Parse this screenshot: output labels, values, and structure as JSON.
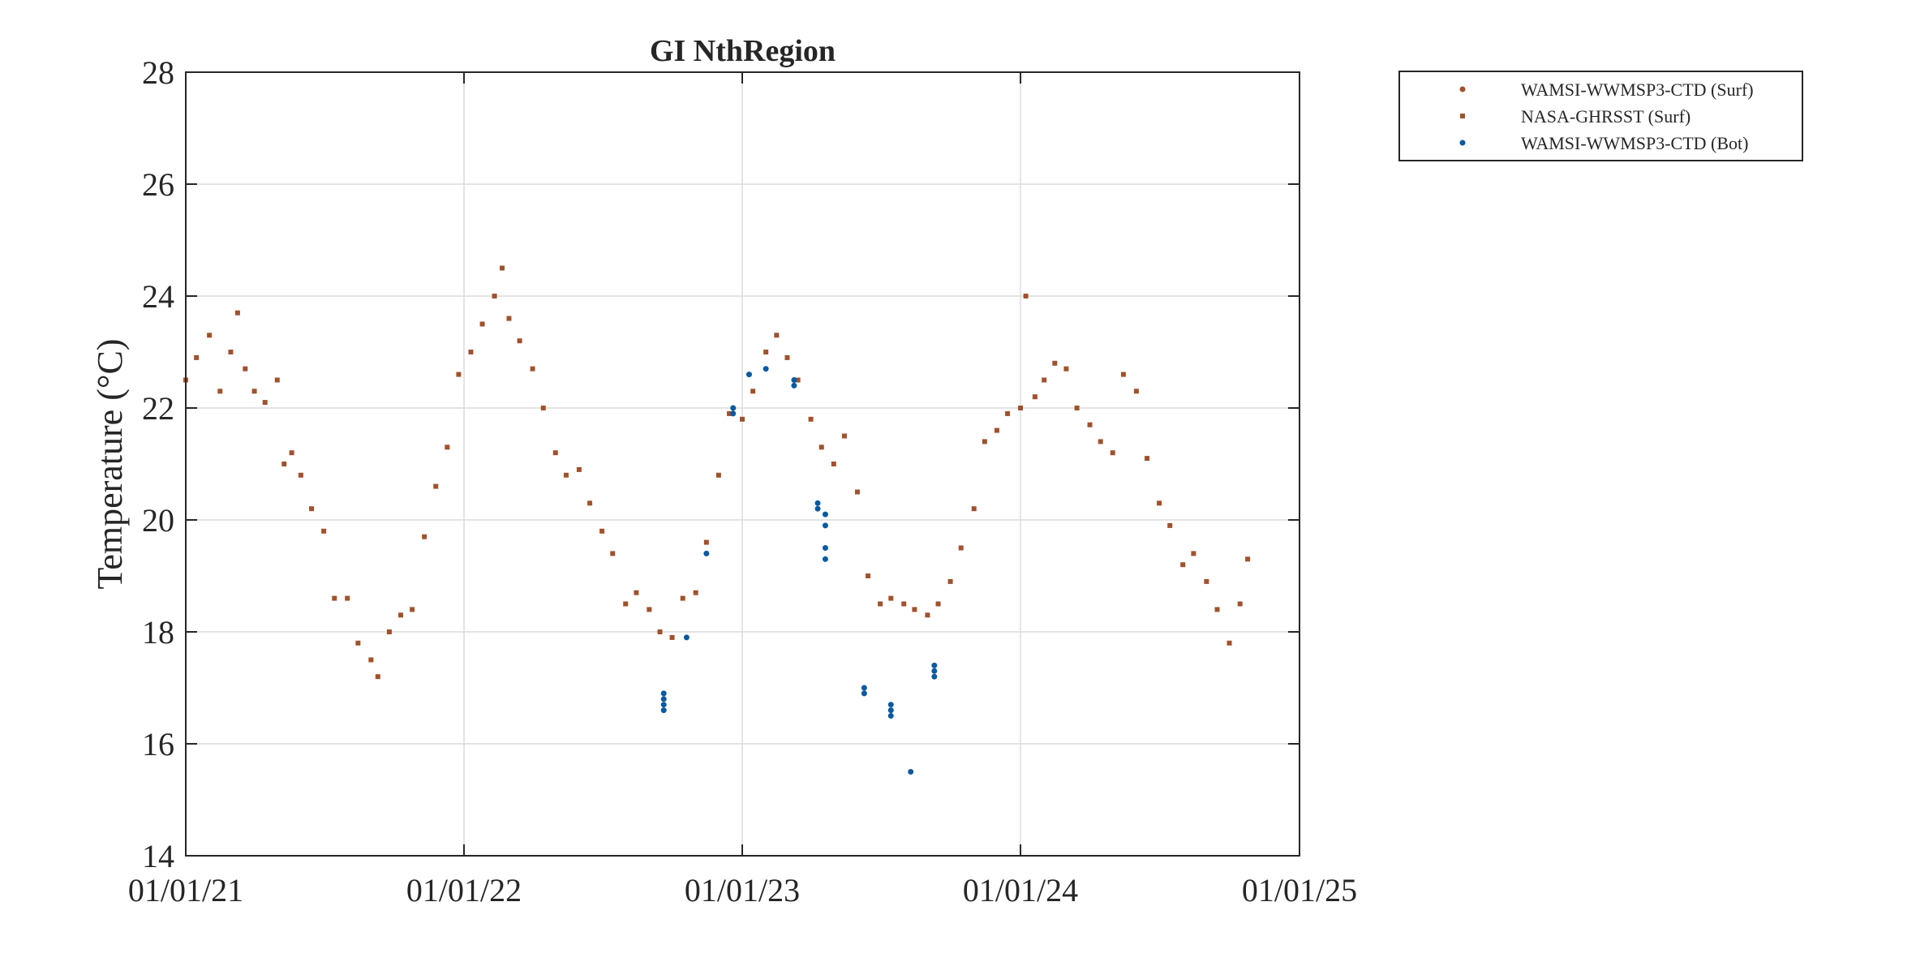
{
  "chart_data": {
    "type": "scatter",
    "title": "GI NthRegion",
    "xlabel": "",
    "ylabel": "Temperature (°C)",
    "x_axis": {
      "type": "date",
      "range": [
        "2021-01-01",
        "2025-01-01"
      ],
      "tick_values": [
        "2021-01-01",
        "2022-01-01",
        "2023-01-01",
        "2024-01-01",
        "2025-01-01"
      ],
      "tick_labels": [
        "01/01/21",
        "01/01/22",
        "01/01/23",
        "01/01/24",
        "01/01/25"
      ]
    },
    "y_axis": {
      "range": [
        14,
        28
      ],
      "tick_values": [
        14,
        16,
        18,
        20,
        22,
        24,
        26,
        28
      ],
      "tick_labels": [
        "14",
        "16",
        "18",
        "20",
        "22",
        "24",
        "26",
        "28"
      ]
    },
    "grid": true,
    "legend": {
      "position": "outside-top-right",
      "entries": [
        "WAMSI-WWMSP3-CTD (Surf)",
        "NASA-GHRSST (Surf)",
        "WAMSI-WWMSP3-CTD (Bot)"
      ]
    },
    "colors": {
      "surf_ctd": "#a0522d",
      "ghrsst": "#a0522d",
      "bottom_ctd": "#0b5aa0",
      "axes": "#262626",
      "grid": "#dcdcdc"
    },
    "series": [
      {
        "name": "WAMSI-WWMSP3-CTD (Surf)",
        "marker": "dot",
        "points": []
      },
      {
        "name": "NASA-GHRSST (Surf)",
        "marker": "square",
        "points": [
          [
            "2021-01-01",
            22.5
          ],
          [
            "2021-01-15",
            22.9
          ],
          [
            "2021-02-01",
            23.3
          ],
          [
            "2021-02-15",
            22.3
          ],
          [
            "2021-03-01",
            23.0
          ],
          [
            "2021-03-10",
            23.7
          ],
          [
            "2021-03-20",
            22.7
          ],
          [
            "2021-04-01",
            22.3
          ],
          [
            "2021-04-15",
            22.1
          ],
          [
            "2021-05-01",
            22.5
          ],
          [
            "2021-05-10",
            21.0
          ],
          [
            "2021-05-20",
            21.2
          ],
          [
            "2021-06-01",
            20.8
          ],
          [
            "2021-06-15",
            20.2
          ],
          [
            "2021-07-01",
            19.8
          ],
          [
            "2021-07-15",
            18.6
          ],
          [
            "2021-08-01",
            18.6
          ],
          [
            "2021-08-15",
            17.8
          ],
          [
            "2021-09-01",
            17.5
          ],
          [
            "2021-09-10",
            17.2
          ],
          [
            "2021-09-25",
            18.0
          ],
          [
            "2021-10-10",
            18.3
          ],
          [
            "2021-10-25",
            18.4
          ],
          [
            "2021-11-10",
            19.7
          ],
          [
            "2021-11-25",
            20.6
          ],
          [
            "2021-12-10",
            21.3
          ],
          [
            "2021-12-25",
            22.6
          ],
          [
            "2022-01-10",
            23.0
          ],
          [
            "2022-01-25",
            23.5
          ],
          [
            "2022-02-10",
            24.0
          ],
          [
            "2022-02-20",
            24.5
          ],
          [
            "2022-03-01",
            23.6
          ],
          [
            "2022-03-15",
            23.2
          ],
          [
            "2022-04-01",
            22.7
          ],
          [
            "2022-04-15",
            22.0
          ],
          [
            "2022-05-01",
            21.2
          ],
          [
            "2022-05-15",
            20.8
          ],
          [
            "2022-06-01",
            20.9
          ],
          [
            "2022-06-15",
            20.3
          ],
          [
            "2022-07-01",
            19.8
          ],
          [
            "2022-07-15",
            19.4
          ],
          [
            "2022-08-01",
            18.5
          ],
          [
            "2022-08-15",
            18.7
          ],
          [
            "2022-09-01",
            18.4
          ],
          [
            "2022-09-15",
            18.0
          ],
          [
            "2022-10-01",
            17.9
          ],
          [
            "2022-10-15",
            18.6
          ],
          [
            "2022-11-01",
            18.7
          ],
          [
            "2022-11-15",
            19.6
          ],
          [
            "2022-12-01",
            20.8
          ],
          [
            "2022-12-15",
            21.9
          ],
          [
            "2023-01-01",
            21.8
          ],
          [
            "2023-01-15",
            22.3
          ],
          [
            "2023-02-01",
            23.0
          ],
          [
            "2023-02-15",
            23.3
          ],
          [
            "2023-03-01",
            22.9
          ],
          [
            "2023-03-15",
            22.5
          ],
          [
            "2023-04-01",
            21.8
          ],
          [
            "2023-04-15",
            21.3
          ],
          [
            "2023-05-01",
            21.0
          ],
          [
            "2023-05-15",
            21.5
          ],
          [
            "2023-06-01",
            20.5
          ],
          [
            "2023-06-15",
            19.0
          ],
          [
            "2023-07-01",
            18.5
          ],
          [
            "2023-07-15",
            18.6
          ],
          [
            "2023-08-01",
            18.5
          ],
          [
            "2023-08-15",
            18.4
          ],
          [
            "2023-09-01",
            18.3
          ],
          [
            "2023-09-15",
            18.5
          ],
          [
            "2023-10-01",
            18.9
          ],
          [
            "2023-10-15",
            19.5
          ],
          [
            "2023-11-01",
            20.2
          ],
          [
            "2023-11-15",
            21.4
          ],
          [
            "2023-12-01",
            21.6
          ],
          [
            "2023-12-15",
            21.9
          ],
          [
            "2024-01-01",
            22.0
          ],
          [
            "2024-01-08",
            24.0
          ],
          [
            "2024-01-20",
            22.2
          ],
          [
            "2024-02-01",
            22.5
          ],
          [
            "2024-02-15",
            22.8
          ],
          [
            "2024-03-01",
            22.7
          ],
          [
            "2024-03-15",
            22.0
          ],
          [
            "2024-04-01",
            21.7
          ],
          [
            "2024-04-15",
            21.4
          ],
          [
            "2024-05-01",
            21.2
          ],
          [
            "2024-05-15",
            22.6
          ],
          [
            "2024-06-01",
            22.3
          ],
          [
            "2024-06-15",
            21.1
          ],
          [
            "2024-07-01",
            20.3
          ],
          [
            "2024-07-15",
            19.9
          ],
          [
            "2024-08-01",
            19.2
          ],
          [
            "2024-08-15",
            19.4
          ],
          [
            "2024-09-01",
            18.9
          ],
          [
            "2024-09-15",
            18.4
          ],
          [
            "2024-10-01",
            17.8
          ],
          [
            "2024-10-15",
            18.5
          ],
          [
            "2024-10-25",
            19.3
          ]
        ]
      },
      {
        "name": "WAMSI-WWMSP3-CTD (Bot)",
        "marker": "dot",
        "points": [
          [
            "2022-09-20",
            16.9
          ],
          [
            "2022-09-20",
            16.8
          ],
          [
            "2022-09-20",
            16.7
          ],
          [
            "2022-09-20",
            16.6
          ],
          [
            "2022-10-20",
            17.9
          ],
          [
            "2022-11-15",
            19.4
          ],
          [
            "2022-12-20",
            21.9
          ],
          [
            "2022-12-20",
            22.0
          ],
          [
            "2023-01-10",
            22.6
          ],
          [
            "2023-02-01",
            22.7
          ],
          [
            "2023-03-10",
            22.5
          ],
          [
            "2023-03-10",
            22.4
          ],
          [
            "2023-04-10",
            20.3
          ],
          [
            "2023-04-10",
            20.2
          ],
          [
            "2023-04-20",
            20.1
          ],
          [
            "2023-04-20",
            19.9
          ],
          [
            "2023-04-20",
            19.5
          ],
          [
            "2023-04-20",
            19.3
          ],
          [
            "2023-06-10",
            17.0
          ],
          [
            "2023-06-10",
            16.9
          ],
          [
            "2023-07-15",
            16.7
          ],
          [
            "2023-07-15",
            16.6
          ],
          [
            "2023-07-15",
            16.5
          ],
          [
            "2023-08-10",
            15.5
          ],
          [
            "2023-09-10",
            17.4
          ],
          [
            "2023-09-10",
            17.3
          ],
          [
            "2023-09-10",
            17.2
          ]
        ]
      }
    ]
  }
}
